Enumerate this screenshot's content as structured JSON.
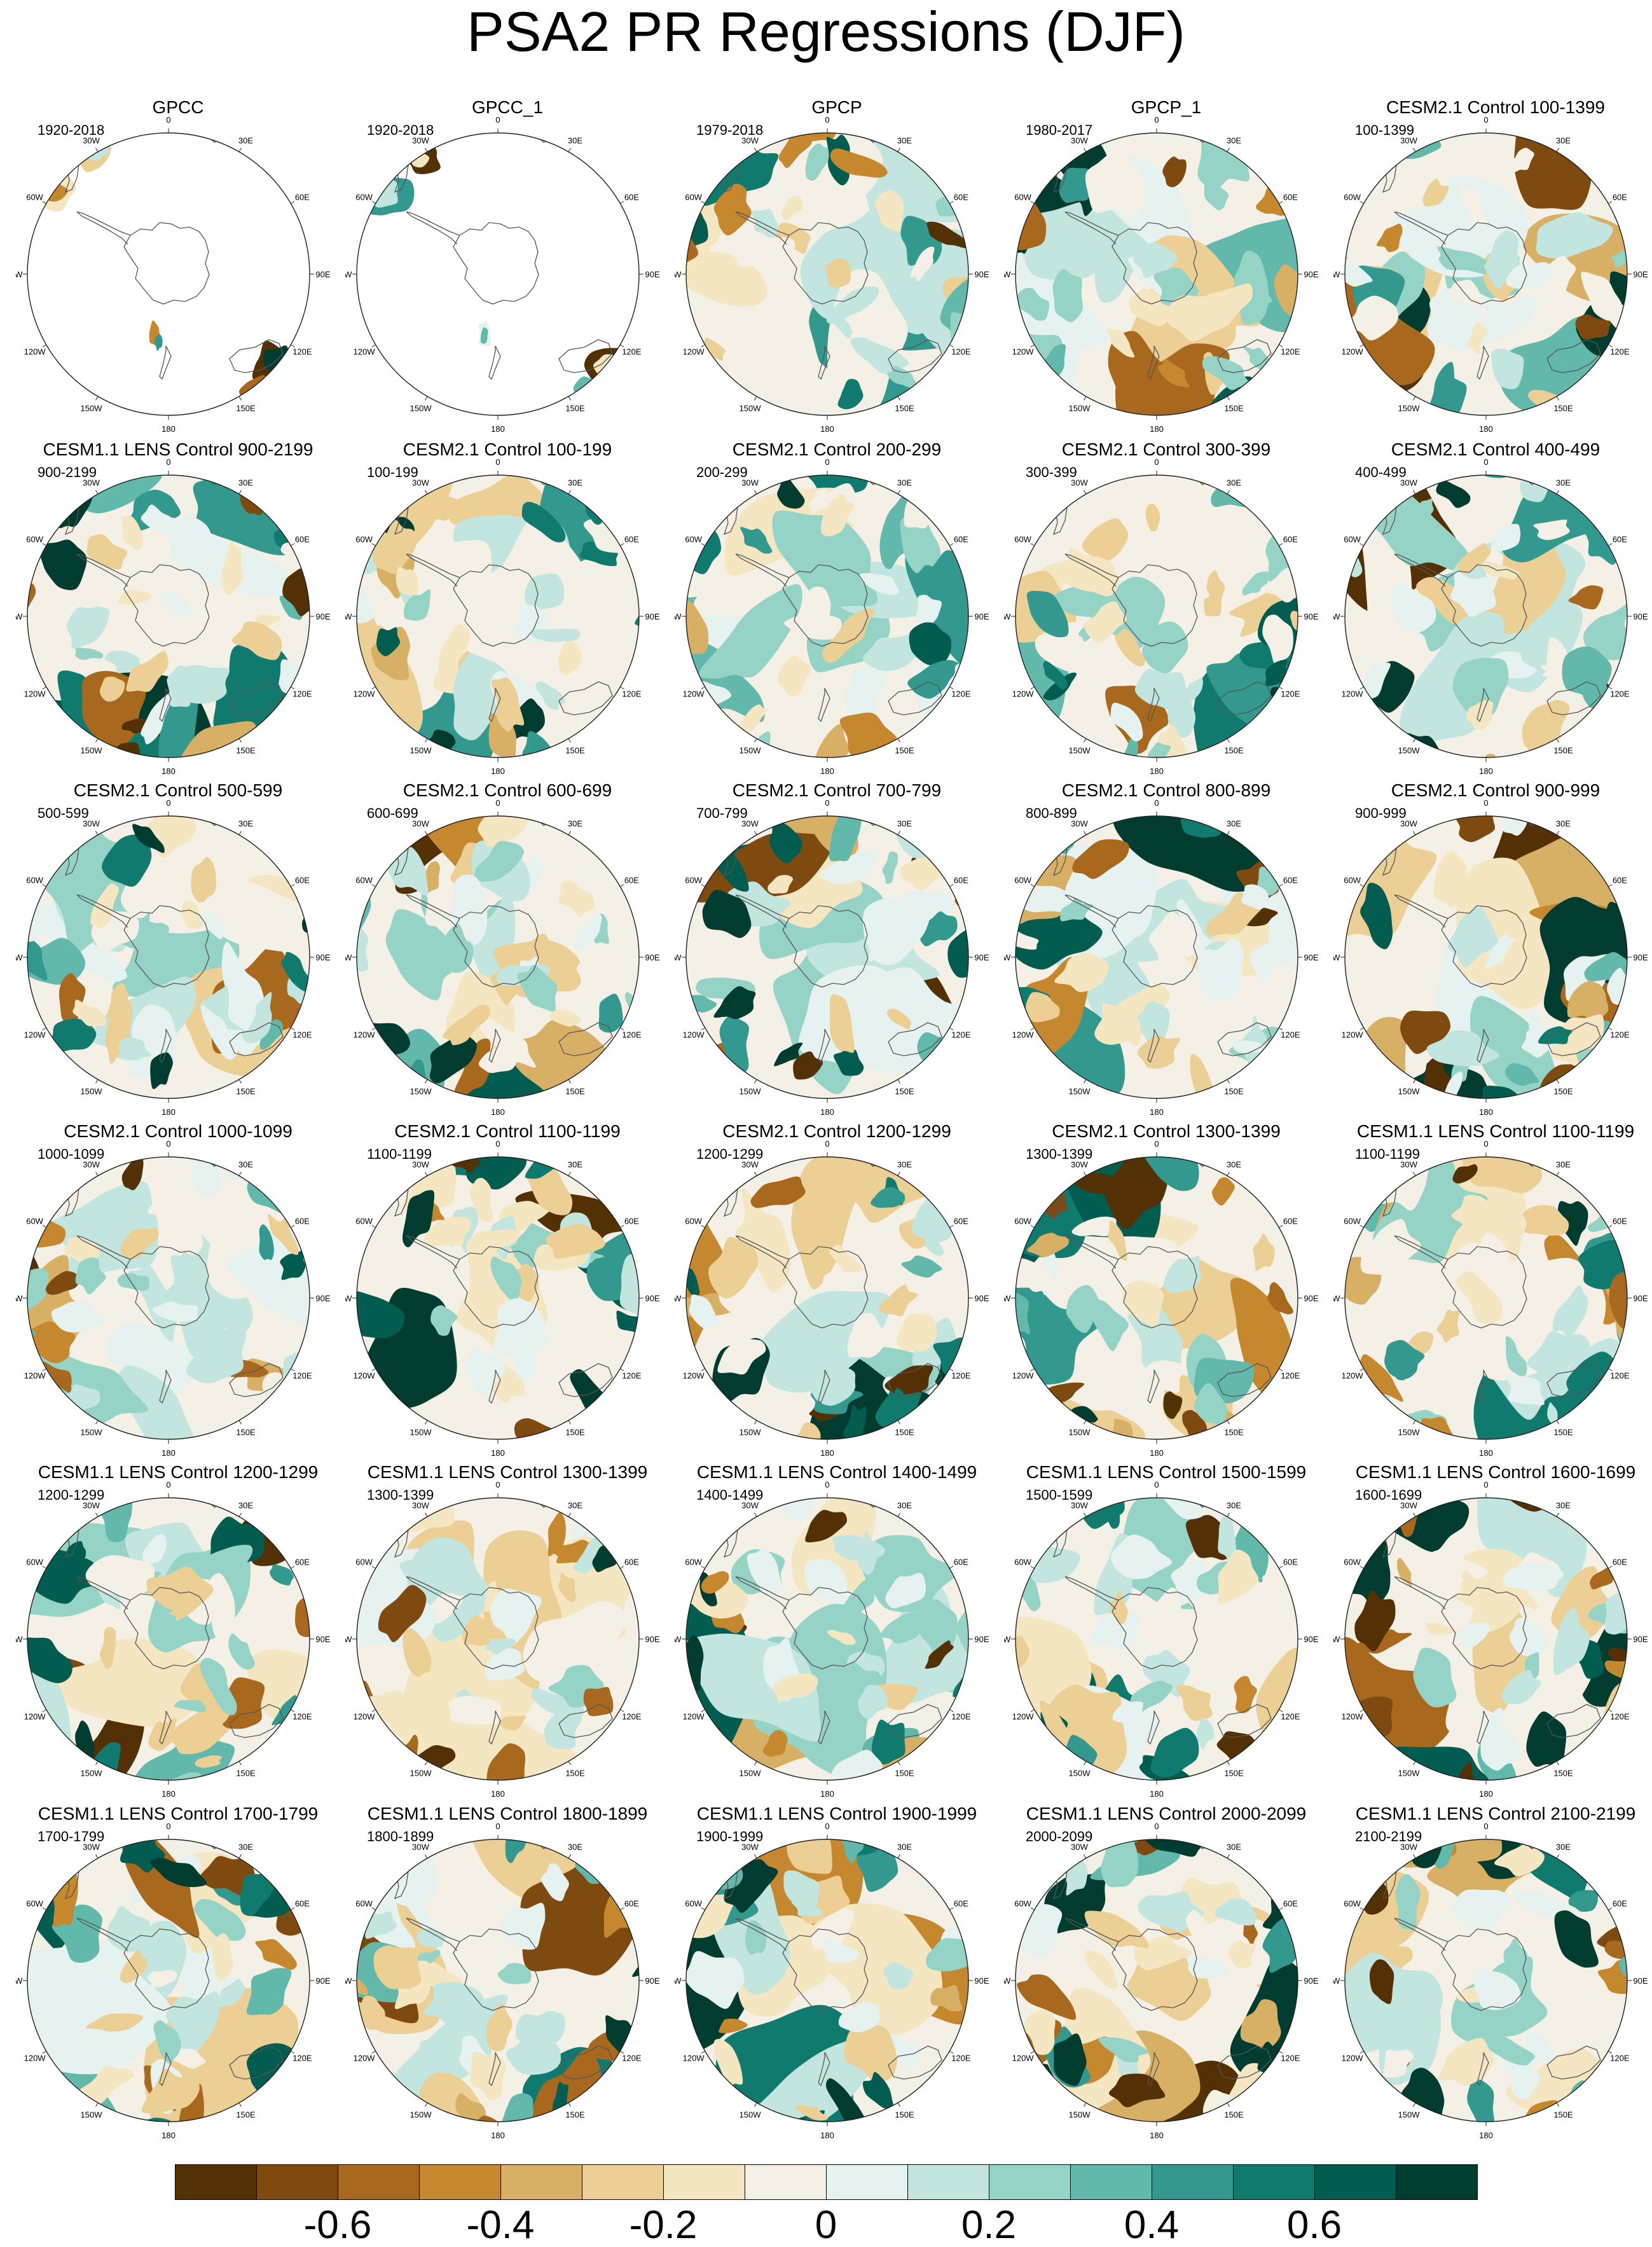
{
  "title": "PSA2 PR Regressions (DJF)",
  "chart_data": {
    "type": "heatmap",
    "projection": "south polar stereographic",
    "layout": {
      "rows": 6,
      "cols": 5
    },
    "lon_labels": [
      "0",
      "30E",
      "60E",
      "90E",
      "120E",
      "150E",
      "180",
      "150W",
      "120W",
      "90W",
      "60W",
      "30W"
    ],
    "panels": [
      {
        "title": "GPCC",
        "period": "1920-2018",
        "masked": true
      },
      {
        "title": "GPCC_1",
        "period": "1920-2018",
        "masked": true
      },
      {
        "title": "GPCP",
        "period": "1979-2018"
      },
      {
        "title": "GPCP_1",
        "period": "1980-2017"
      },
      {
        "title": "CESM2.1 Control 100-1399",
        "period": "100-1399"
      },
      {
        "title": "CESM1.1 LENS Control 900-2199",
        "period": "900-2199"
      },
      {
        "title": "CESM2.1 Control 100-199",
        "period": "100-199"
      },
      {
        "title": "CESM2.1 Control 200-299",
        "period": "200-299"
      },
      {
        "title": "CESM2.1 Control 300-399",
        "period": "300-399"
      },
      {
        "title": "CESM2.1 Control 400-499",
        "period": "400-499"
      },
      {
        "title": "CESM2.1 Control 500-599",
        "period": "500-599"
      },
      {
        "title": "CESM2.1 Control 600-699",
        "period": "600-699"
      },
      {
        "title": "CESM2.1 Control 700-799",
        "period": "700-799"
      },
      {
        "title": "CESM2.1 Control 800-899",
        "period": "800-899"
      },
      {
        "title": "CESM2.1 Control 900-999",
        "period": "900-999"
      },
      {
        "title": "CESM2.1 Control 1000-1099",
        "period": "1000-1099"
      },
      {
        "title": "CESM2.1 Control 1100-1199",
        "period": "1100-1199"
      },
      {
        "title": "CESM2.1 Control 1200-1299",
        "period": "1200-1299"
      },
      {
        "title": "CESM2.1 Control 1300-1399",
        "period": "1300-1399"
      },
      {
        "title": "CESM1.1 LENS Control 1100-1199",
        "period": "1100-1199"
      },
      {
        "title": "CESM1.1 LENS Control 1200-1299",
        "period": "1200-1299"
      },
      {
        "title": "CESM1.1 LENS Control 1300-1399",
        "period": "1300-1399"
      },
      {
        "title": "CESM1.1 LENS Control 1400-1499",
        "period": "1400-1499"
      },
      {
        "title": "CESM1.1 LENS Control 1500-1599",
        "period": "1500-1599"
      },
      {
        "title": "CESM1.1 LENS Control 1600-1699",
        "period": "1600-1699"
      },
      {
        "title": "CESM1.1 LENS Control 1700-1799",
        "period": "1700-1799"
      },
      {
        "title": "CESM1.1 LENS Control 1800-1899",
        "period": "1800-1899"
      },
      {
        "title": "CESM1.1 LENS Control 1900-1999",
        "period": "1900-1999"
      },
      {
        "title": "CESM1.1 LENS Control 2000-2099",
        "period": "2000-2099"
      },
      {
        "title": "CESM1.1 LENS Control 2100-2199",
        "period": "2100-2199"
      }
    ],
    "colorbar": {
      "colors": [
        "#543005",
        "#7f4a10",
        "#a8691e",
        "#c6882e",
        "#d8b065",
        "#ebcf94",
        "#f5e6c2",
        "#f5f0e6",
        "#e6f2f0",
        "#c2e6df",
        "#96d3c7",
        "#62b8aa",
        "#33998e",
        "#117a6f",
        "#035c50",
        "#003c30"
      ],
      "tick_values": [
        -0.6,
        -0.4,
        -0.2,
        0,
        0.2,
        0.4,
        0.6
      ],
      "tick_labels": [
        "-0.6",
        "-0.4",
        "-0.2",
        "0",
        "0.2",
        "0.4",
        "0.6"
      ]
    }
  }
}
